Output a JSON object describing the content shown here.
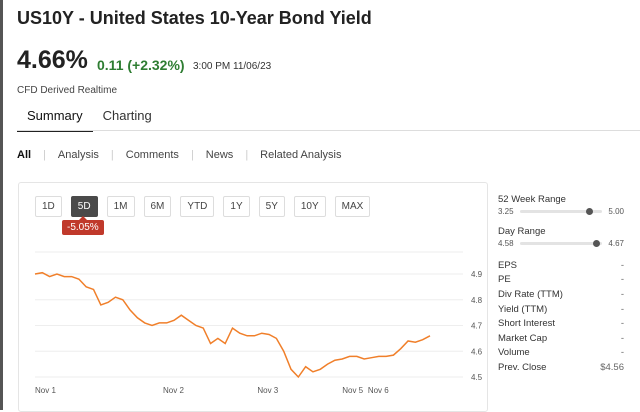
{
  "header": {
    "ticker": "US10Y",
    "separator": " - ",
    "name": "United States 10-Year Bond Yield",
    "price": "4.66%",
    "change": "0.11 (+2.32%)",
    "timestamp": "3:00 PM 11/06/23",
    "source": "CFD Derived Realtime"
  },
  "tabs": [
    {
      "label": "Summary",
      "active": true
    },
    {
      "label": "Charting",
      "active": false
    }
  ],
  "filters": [
    "All",
    "Analysis",
    "Comments",
    "News",
    "Related Analysis"
  ],
  "ranges": [
    {
      "label": "1D"
    },
    {
      "label": "5D",
      "active": true
    },
    {
      "label": "1M"
    },
    {
      "label": "6M"
    },
    {
      "label": "YTD"
    },
    {
      "label": "1Y"
    },
    {
      "label": "5Y"
    },
    {
      "label": "10Y"
    },
    {
      "label": "MAX"
    }
  ],
  "range_change": "-5.05%",
  "colors": {
    "line": "#f07f2a",
    "positive": "#2e7d32",
    "negative": "#c0392b"
  },
  "chart_data": {
    "type": "line",
    "ylim": [
      4.45,
      4.95
    ],
    "yticks": [
      "4.9",
      "4.8",
      "4.7",
      "4.6",
      "4.5"
    ],
    "xticks": [
      {
        "label": "Nov 1",
        "at": 0
      },
      {
        "label": "Nov 2",
        "at": 17.5
      },
      {
        "label": "Nov 3",
        "at": 30.4
      },
      {
        "label": "Nov 5",
        "at": 42
      },
      {
        "label": "Nov 6",
        "at": 45.5
      }
    ],
    "values": [
      4.9,
      4.905,
      4.89,
      4.9,
      4.89,
      4.89,
      4.88,
      4.85,
      4.84,
      4.78,
      4.79,
      4.81,
      4.8,
      4.76,
      4.73,
      4.71,
      4.7,
      4.71,
      4.71,
      4.72,
      4.74,
      4.72,
      4.7,
      4.69,
      4.63,
      4.65,
      4.63,
      4.69,
      4.67,
      4.66,
      4.66,
      4.67,
      4.665,
      4.65,
      4.6,
      4.53,
      4.5,
      4.54,
      4.52,
      4.53,
      4.55,
      4.565,
      4.57,
      4.58,
      4.58,
      4.57,
      4.575,
      4.58,
      4.58,
      4.585,
      4.61,
      4.64,
      4.635,
      4.645,
      4.66
    ]
  },
  "side": {
    "week52": {
      "label": "52 Week Range",
      "low": "3.25",
      "high": "5.00",
      "position": 0.85
    },
    "day": {
      "label": "Day Range",
      "low": "4.58",
      "high": "4.67",
      "position": 0.93
    },
    "stats": [
      {
        "label": "EPS",
        "value": "-"
      },
      {
        "label": "PE",
        "value": "-"
      },
      {
        "label": "Div Rate (TTM)",
        "value": "-"
      },
      {
        "label": "Yield (TTM)",
        "value": "-"
      },
      {
        "label": "Short Interest",
        "value": "-"
      },
      {
        "label": "Market Cap",
        "value": "-"
      },
      {
        "label": "Volume",
        "value": "-"
      },
      {
        "label": "Prev. Close",
        "value": "$4.56"
      }
    ]
  }
}
